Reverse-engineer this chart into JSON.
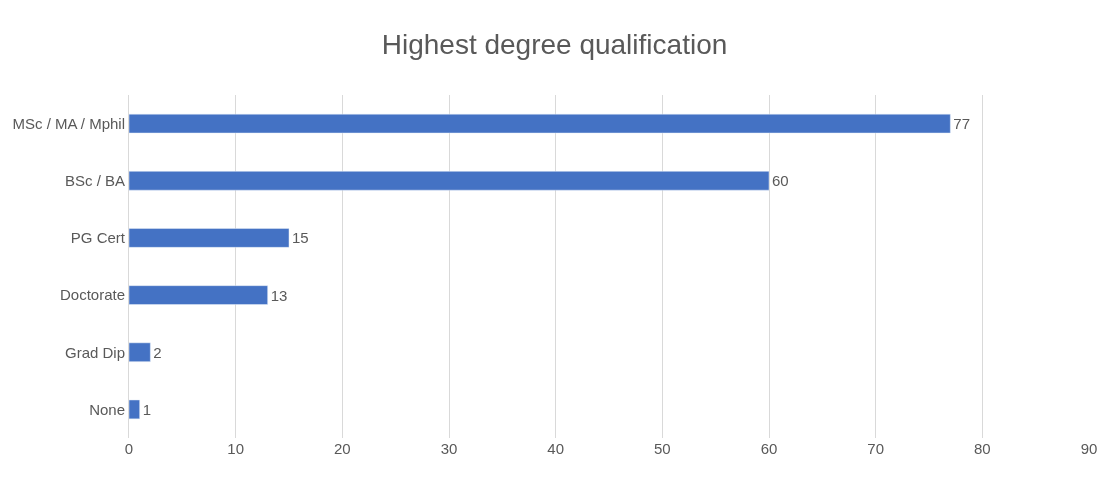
{
  "chart_data": {
    "type": "bar",
    "title": "Highest degree qualification",
    "orientation": "horizontal",
    "categories": [
      "MSc / MA / Mphil",
      "BSc / BA",
      "PG Cert",
      "Doctorate",
      "Grad Dip",
      "None"
    ],
    "values": [
      77,
      60,
      15,
      13,
      2,
      1
    ],
    "color": "#4472c4",
    "xlim": [
      0,
      90
    ],
    "xticks": [
      0,
      10,
      20,
      30,
      40,
      50,
      60,
      70,
      80,
      90
    ],
    "grid": "x",
    "data_labels": true,
    "legend": false
  }
}
